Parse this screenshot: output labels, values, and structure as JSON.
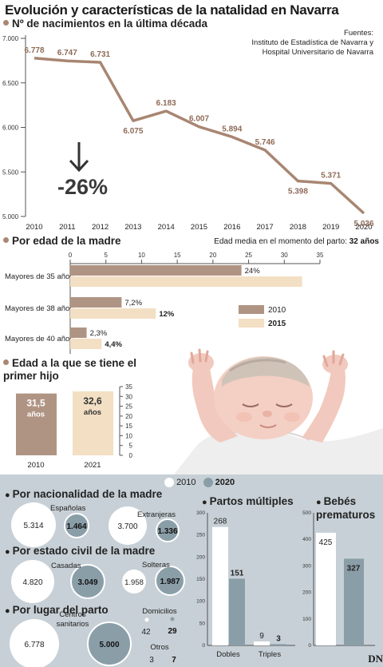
{
  "title": "Evolución y características de la natalidad en Navarra",
  "births": {
    "heading": "Nº de nacimientos en la última década",
    "sources_label": "Fuentes:",
    "sources": [
      "Instituto de Estadística de Navarra y",
      "Hospital Universitario de Navarra"
    ],
    "change_label": "-26%",
    "arrow_icon": "arrow-down-icon",
    "line_color": "#a88672"
  },
  "mother_age": {
    "heading": "Por edad de la madre",
    "avg_label": "Edad media en el momento del parto: ",
    "avg_value": "32 años",
    "legend": [
      "2010",
      "2015"
    ],
    "colors": {
      "2010": "#b09483",
      "2015": "#f3dfc4"
    }
  },
  "first_child": {
    "heading_line1": "Edad a la que se tiene el",
    "heading_line2": "primer hijo",
    "bars": [
      {
        "year": "2010",
        "value_label": "31,5",
        "unit": "años",
        "value": 31.5
      },
      {
        "year": "2021",
        "value_label": "32,6",
        "unit": "años",
        "value": 32.6
      }
    ]
  },
  "bottom": {
    "legend": [
      "2010",
      "2020"
    ],
    "colors": {
      "2010": "#ffffff",
      "2020": "#8a9ea8"
    },
    "nationality": {
      "heading": "Por nacionalidad de la madre",
      "groups": [
        {
          "label": "Españolas",
          "v2010": "5.314",
          "v2020": "1.464"
        },
        {
          "label": "Extranjeras",
          "v2010": "3.700",
          "v2020": "1.336"
        }
      ]
    },
    "civil": {
      "heading": "Por estado civil de la madre",
      "groups": [
        {
          "label": "Casadas",
          "v2010": "4.820",
          "v2020": "3.049"
        },
        {
          "label": "Solteras",
          "v2010": "1.958",
          "v2020": "1.987"
        }
      ]
    },
    "place": {
      "heading": "Por lugar del parto",
      "groups": [
        {
          "label": "Centros sanitarios",
          "label_line1": "Centros",
          "label_line2": "sanitarios",
          "v2010": "6.778",
          "v2020": "5.000"
        },
        {
          "label": "Domicilios",
          "v2010": "42",
          "v2020": "29"
        },
        {
          "label": "Otros",
          "v2010": "3",
          "v2020": "7"
        }
      ]
    },
    "multiple": {
      "heading": "Partos múltiples",
      "categories": [
        "Dobles",
        "Triples"
      ]
    },
    "premature": {
      "heading_line1": "Bebés",
      "heading_line2": "prematuros"
    },
    "logo": "DN"
  },
  "chart_data": [
    {
      "type": "line",
      "title": "Nº de nacimientos en la última década",
      "x": [
        "2010",
        "2011",
        "2012",
        "2013",
        "2014",
        "2015",
        "2016",
        "2017",
        "2018",
        "2019",
        "2020"
      ],
      "values": [
        6778,
        6747,
        6731,
        6075,
        6183,
        6007,
        5894,
        5746,
        5398,
        5371,
        5036
      ],
      "labels": [
        "6.778",
        "6.747",
        "6.731",
        "6.075",
        "6.183",
        "6.007",
        "5.894",
        "5.746",
        "5.398",
        "5.371",
        "5.036"
      ],
      "ylim": [
        5000,
        7000
      ],
      "yticks": [
        5000,
        5500,
        6000,
        6500,
        7000
      ],
      "ytick_labels": [
        "5.000",
        "5.500",
        "6.000",
        "6.500",
        "7.000"
      ],
      "grid": false
    },
    {
      "type": "bar",
      "orientation": "horizontal",
      "title": "Por edad de la madre",
      "categories": [
        "Mayores de 35 años",
        "Mayores de 38 años",
        "Mayores de 40 años"
      ],
      "series": [
        {
          "name": "2010",
          "values": [
            24,
            7.2,
            2.3
          ],
          "labels": [
            "24%",
            "7,2%",
            "2,3%"
          ]
        },
        {
          "name": "2015",
          "values": [
            32.5,
            12,
            4.4
          ],
          "labels": [
            "",
            "12%",
            "4,4%"
          ]
        }
      ],
      "xlim": [
        0,
        35
      ],
      "xticks": [
        0,
        5,
        10,
        15,
        20,
        25,
        30,
        35
      ],
      "legend_position": "right"
    },
    {
      "type": "bar",
      "title": "Edad a la que se tiene el primer hijo",
      "categories": [
        "2010",
        "2021"
      ],
      "values": [
        31.5,
        32.6
      ],
      "ylim": [
        0,
        35
      ],
      "yticks": [
        0,
        5,
        10,
        15,
        20,
        25,
        30,
        35
      ]
    },
    {
      "type": "bar",
      "title": "Partos múltiples",
      "categories": [
        "Dobles",
        "Triples"
      ],
      "series": [
        {
          "name": "2010",
          "values": [
            268,
            9
          ]
        },
        {
          "name": "2020",
          "values": [
            151,
            3
          ]
        }
      ],
      "ylim": [
        0,
        300
      ],
      "yticks": [
        0,
        50,
        100,
        150,
        200,
        250,
        300
      ]
    },
    {
      "type": "bar",
      "title": "Bebés prematuros",
      "categories": [
        ""
      ],
      "series": [
        {
          "name": "2010",
          "values": [
            425
          ]
        },
        {
          "name": "2020",
          "values": [
            327
          ]
        }
      ],
      "ylim": [
        0,
        500
      ],
      "yticks": [
        0,
        100,
        200,
        300,
        400,
        500
      ]
    }
  ]
}
